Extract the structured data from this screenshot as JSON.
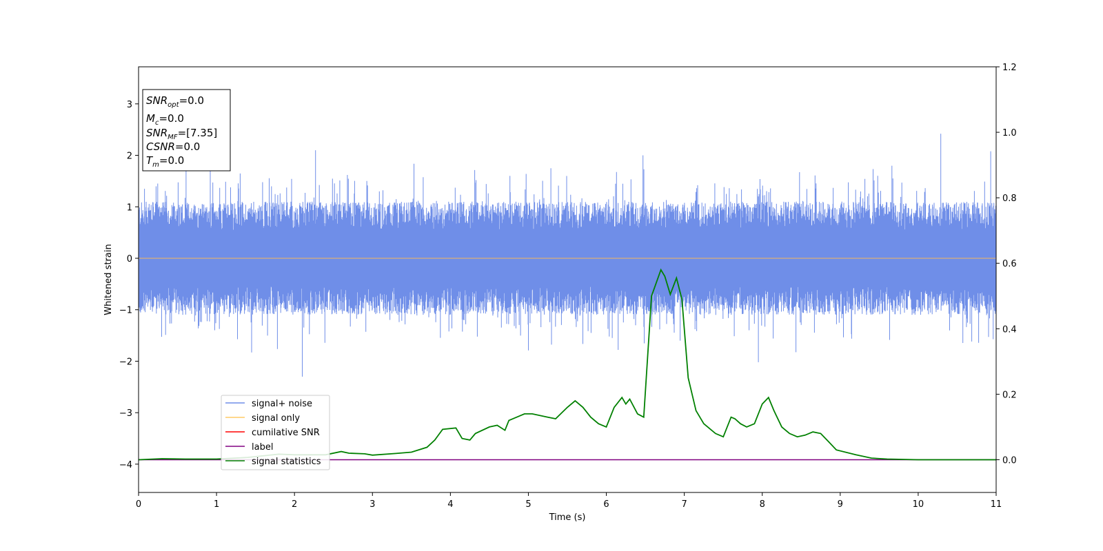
{
  "chart_data": {
    "type": "line",
    "xlabel": "Time (s)",
    "ylabel": "Whitened strain",
    "xlim": [
      0,
      11
    ],
    "ylim_left": [
      -4.55,
      3.72
    ],
    "ylim_right": [
      -0.1,
      1.2
    ],
    "x_ticks": [
      "0",
      "1",
      "2",
      "3",
      "4",
      "5",
      "6",
      "7",
      "8",
      "9",
      "10",
      "11"
    ],
    "y_left_ticks": [
      "−4",
      "−3",
      "−2",
      "−1",
      "0",
      "1",
      "2",
      "3"
    ],
    "y_right_ticks": [
      "0.0",
      "0.2",
      "0.4",
      "0.6",
      "0.8",
      "1.0",
      "1.2"
    ],
    "grid": false,
    "info_box": {
      "snr_opt": {
        "symbol": "SNR",
        "sub": "opt",
        "value": "=0.0"
      },
      "mc": {
        "symbol": "M",
        "sub": "c",
        "value": "=0.0"
      },
      "snr_mf": {
        "symbol": "SNR",
        "sub": "MF",
        "value": "=[7.35]"
      },
      "csnr": {
        "symbol": "CSNR",
        "value": "=0.0"
      },
      "tm": {
        "symbol": "T",
        "sub": "m",
        "value": "=0.0"
      }
    },
    "legend": {
      "placement": "lower-left",
      "entries": [
        {
          "label": "signal+ noise",
          "color": "#6f8ee8"
        },
        {
          "label": "signal only",
          "color": "#ffcc66"
        },
        {
          "label": "cumilative SNR",
          "color": "#ff0000"
        },
        {
          "label": "label",
          "color": "#800080"
        },
        {
          "label": "signal statistics",
          "color": "#008000"
        }
      ]
    },
    "series": [
      {
        "name": "signal+ noise",
        "axis": "left",
        "color": "#6f8ee8",
        "description_values": "noise band approx ±1 with spikes up to 2.4 and down to -2.3"
      },
      {
        "name": "signal only",
        "axis": "left",
        "color": "#ffcc66",
        "constant_value": 0.0
      },
      {
        "name": "label",
        "axis": "right",
        "color": "#800080",
        "constant_value": 0.0
      },
      {
        "name": "signal statistics",
        "axis": "right",
        "color": "#008000",
        "x": [
          0,
          0.3,
          0.6,
          1.0,
          1.4,
          1.8,
          2.0,
          2.4,
          2.6,
          2.7,
          2.9,
          3.0,
          3.3,
          3.5,
          3.7,
          3.8,
          3.9,
          4.07,
          4.15,
          4.25,
          4.32,
          4.5,
          4.6,
          4.7,
          4.75,
          4.85,
          4.95,
          5.05,
          5.25,
          5.35,
          5.5,
          5.6,
          5.7,
          5.8,
          5.9,
          6.0,
          6.1,
          6.2,
          6.25,
          6.3,
          6.4,
          6.48,
          6.58,
          6.7,
          6.75,
          6.82,
          6.9,
          6.97,
          7.05,
          7.15,
          7.25,
          7.3,
          7.4,
          7.5,
          7.6,
          7.65,
          7.72,
          7.8,
          7.9,
          8.0,
          8.08,
          8.15,
          8.25,
          8.35,
          8.45,
          8.55,
          8.65,
          8.75,
          8.85,
          8.95,
          9.2,
          9.4,
          9.6,
          9.8,
          10.0,
          10.5,
          11.0
        ],
        "y": [
          0.0,
          0.003,
          0.002,
          0.002,
          0.007,
          0.017,
          0.015,
          0.015,
          0.025,
          0.02,
          0.018,
          0.014,
          0.019,
          0.023,
          0.038,
          0.06,
          0.093,
          0.097,
          0.065,
          0.06,
          0.08,
          0.1,
          0.105,
          0.09,
          0.12,
          0.13,
          0.14,
          0.14,
          0.13,
          0.125,
          0.16,
          0.18,
          0.16,
          0.13,
          0.11,
          0.1,
          0.16,
          0.19,
          0.17,
          0.185,
          0.14,
          0.13,
          0.5,
          0.58,
          0.56,
          0.505,
          0.555,
          0.49,
          0.25,
          0.15,
          0.11,
          0.1,
          0.08,
          0.07,
          0.13,
          0.125,
          0.11,
          0.1,
          0.11,
          0.17,
          0.19,
          0.15,
          0.1,
          0.08,
          0.07,
          0.075,
          0.085,
          0.08,
          0.055,
          0.03,
          0.015,
          0.005,
          0.002,
          0.001,
          0.0,
          0.0,
          0.0
        ]
      }
    ]
  }
}
